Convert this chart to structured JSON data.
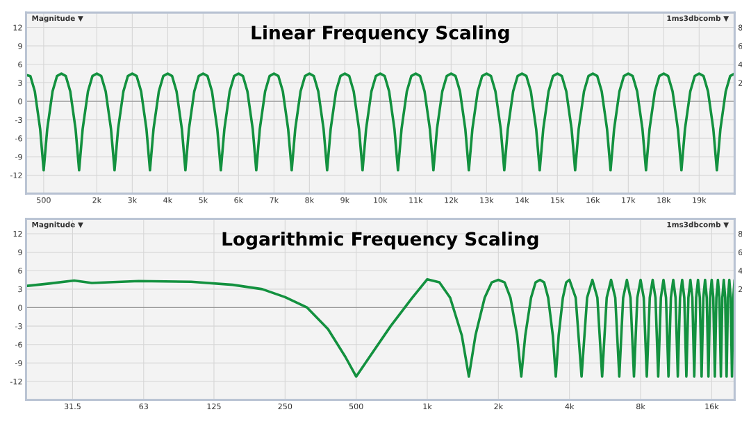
{
  "chart_data": [
    {
      "type": "line",
      "title": "Linear Frequency Scaling",
      "annotations": [
        "Magnitude ▼",
        "1ms3dbcomb ▼"
      ],
      "x": [
        0,
        125,
        250,
        400,
        500,
        600,
        750,
        875,
        1000,
        1125,
        1250,
        1400,
        1500,
        1600,
        1750,
        1875,
        2000,
        2125,
        2250,
        2400,
        2500,
        2600,
        2750,
        2875,
        3000,
        3125,
        3250,
        3400,
        3500,
        3600,
        3750,
        3875,
        4000,
        4125,
        4250,
        4400,
        4500,
        4600,
        4750,
        4875,
        5000,
        5125,
        5250,
        5400,
        5500,
        5600,
        5750,
        5875,
        6000,
        6125,
        6250,
        6400,
        6500,
        6600,
        6750,
        6875,
        7000,
        7125,
        7250,
        7400,
        7500,
        7600,
        7750,
        7875,
        8000,
        8125,
        8250,
        8400,
        8500,
        8600,
        8750,
        8875,
        9000,
        9125,
        9250,
        9400,
        9500,
        9600,
        9750,
        9875,
        10000,
        10125,
        10250,
        10400,
        10500,
        10600,
        10750,
        10875,
        11000,
        11125,
        11250,
        11400,
        11500,
        11600,
        11750,
        11875,
        12000,
        12125,
        12250,
        12400,
        12500,
        12600,
        12750,
        12875,
        13000,
        13125,
        13250,
        13400,
        13500,
        13600,
        13750,
        13875,
        14000,
        14125,
        14250,
        14400,
        14500,
        14600,
        14750,
        14875,
        15000,
        15125,
        15250,
        15400,
        15500,
        15600,
        15750,
        15875,
        16000,
        16125,
        16250,
        16400,
        16500,
        16600,
        16750,
        16875,
        17000,
        17125,
        17250,
        17400,
        17500,
        17600,
        17750,
        17875,
        18000,
        18125,
        18250,
        18400,
        18500,
        18600,
        18750,
        18875,
        19000,
        19125,
        19250,
        19400,
        19500,
        19600,
        19750,
        19875,
        20000
      ],
      "series": [
        {
          "color": "#13913f",
          "values": [
            4.3,
            4.1,
            1.6,
            -4.5,
            -11.2,
            -4.5,
            1.6,
            4.1,
            4.5,
            4.1,
            1.6,
            -4.5,
            -11.2,
            -4.5,
            1.6,
            4.1,
            4.5,
            4.1,
            1.6,
            -4.5,
            -11.2,
            -4.5,
            1.6,
            4.1,
            4.5,
            4.1,
            1.6,
            -4.5,
            -11.2,
            -4.5,
            1.6,
            4.1,
            4.5,
            4.1,
            1.6,
            -4.5,
            -11.2,
            -4.5,
            1.6,
            4.1,
            4.5,
            4.1,
            1.6,
            -4.5,
            -11.2,
            -4.5,
            1.6,
            4.1,
            4.5,
            4.1,
            1.6,
            -4.5,
            -11.2,
            -4.5,
            1.6,
            4.1,
            4.5,
            4.1,
            1.6,
            -4.5,
            -11.2,
            -4.5,
            1.6,
            4.1,
            4.5,
            4.1,
            1.6,
            -4.5,
            -11.2,
            -4.5,
            1.6,
            4.1,
            4.5,
            4.1,
            1.6,
            -4.5,
            -11.2,
            -4.5,
            1.6,
            4.1,
            4.5,
            4.1,
            1.6,
            -4.5,
            -11.2,
            -4.5,
            1.6,
            4.1,
            4.5,
            4.1,
            1.6,
            -4.5,
            -11.2,
            -4.5,
            1.6,
            4.1,
            4.5,
            4.1,
            1.6,
            -4.5,
            -11.2,
            -4.5,
            1.6,
            4.1,
            4.5,
            4.1,
            1.6,
            -4.5,
            -11.2,
            -4.5,
            1.6,
            4.1,
            4.5,
            4.1,
            1.6,
            -4.5,
            -11.2,
            -4.5,
            1.6,
            4.1,
            4.5,
            4.1,
            1.6,
            -4.5,
            -11.2,
            -4.5,
            1.6,
            4.1,
            4.5,
            4.1,
            1.6,
            -4.5,
            -11.2,
            -4.5,
            1.6,
            4.1,
            4.5,
            4.1,
            1.6,
            -4.5,
            -11.2,
            -4.5,
            1.6,
            4.1,
            4.5,
            4.1,
            1.6,
            -4.5,
            -11.2,
            -4.5,
            1.6,
            4.1,
            4.5,
            4.1,
            1.6,
            -4.5,
            -11.2,
            -4.5,
            1.6,
            4.1,
            4.5
          ]
        }
      ],
      "xlim": [
        0,
        20000
      ],
      "ylim": [
        -15,
        14.4
      ],
      "xticks": [
        500,
        {
          "value": 2000,
          "label": "2k"
        },
        {
          "value": 3000,
          "label": "3k"
        },
        {
          "value": 4000,
          "label": "4k"
        },
        {
          "value": 5000,
          "label": "5k"
        },
        {
          "value": 6000,
          "label": "6k"
        },
        {
          "value": 7000,
          "label": "7k"
        },
        {
          "value": 8000,
          "label": "8k"
        },
        {
          "value": 9000,
          "label": "9k"
        },
        {
          "value": 10000,
          "label": "10k"
        },
        {
          "value": 11000,
          "label": "11k"
        },
        {
          "value": 12000,
          "label": "12k"
        },
        {
          "value": 13000,
          "label": "13k"
        },
        {
          "value": 14000,
          "label": "14k"
        },
        {
          "value": 15000,
          "label": "15k"
        },
        {
          "value": 16000,
          "label": "16k"
        },
        {
          "value": 17000,
          "label": "17k"
        },
        {
          "value": 18000,
          "label": "18k"
        },
        {
          "value": 19000,
          "label": "19k"
        }
      ],
      "yticks": [
        -12,
        -9,
        -6,
        -3,
        0,
        3,
        6,
        9,
        12
      ],
      "y2lim": [
        -10,
        9.6
      ],
      "y2ticks": [
        2,
        4,
        6,
        8
      ],
      "grid": true
    },
    {
      "type": "line",
      "title": "Logarithmic Frequency Scaling",
      "annotations": [
        "Magnitude ▼",
        "1ms3dbcomb ▼"
      ],
      "log": "x",
      "x": [
        20,
        25,
        32,
        38,
        60,
        100,
        150,
        200,
        250,
        310,
        380,
        450,
        500,
        570,
        700,
        860,
        1000,
        1125,
        1250,
        1400,
        1500,
        1600,
        1750,
        1875,
        2000,
        2125,
        2250,
        2400,
        2500,
        2600,
        2750,
        2875,
        3000,
        3125,
        3250,
        3400,
        3500,
        3600,
        3750,
        3875,
        4000,
        4250,
        4500,
        4750,
        5000,
        5250,
        5500,
        5750,
        6000,
        6250,
        6500,
        6750,
        7000,
        7250,
        7500,
        7750,
        8000,
        8250,
        8500,
        8750,
        9000,
        9250,
        9500,
        9750,
        10000,
        10250,
        10500,
        10750,
        11000,
        11250,
        11500,
        11750,
        12000,
        12250,
        12500,
        12750,
        13000,
        13250,
        13500,
        13750,
        14000,
        14250,
        14500,
        14750,
        15000,
        15250,
        15500,
        15750,
        16000,
        16250,
        16500,
        16750,
        17000,
        17250,
        17500,
        17750,
        18000,
        18250,
        18500,
        18750,
        19000,
        19250,
        19500,
        19750,
        20000
      ],
      "series": [
        {
          "color": "#13913f",
          "values": [
            3.5,
            3.9,
            4.4,
            4.0,
            4.3,
            4.2,
            3.7,
            3.0,
            1.7,
            0,
            -3.5,
            -8,
            -11.2,
            -8,
            -3,
            1.5,
            4.6,
            4.1,
            1.6,
            -4.5,
            -11.2,
            -4.5,
            1.6,
            4.1,
            4.5,
            4.1,
            1.6,
            -4.5,
            -11.2,
            -4.5,
            1.6,
            4.1,
            4.5,
            4.1,
            1.6,
            -4.5,
            -11.2,
            -4.5,
            1.6,
            4.1,
            4.5,
            1.6,
            -11.2,
            1.6,
            4.5,
            1.6,
            -11.2,
            1.6,
            4.5,
            1.6,
            -11.2,
            1.6,
            4.5,
            1.6,
            -11.2,
            1.6,
            4.5,
            1.6,
            -11.2,
            1.6,
            4.5,
            1.6,
            -11.2,
            1.6,
            4.5,
            1.6,
            -11.2,
            1.6,
            4.5,
            1.6,
            -11.2,
            1.6,
            4.5,
            1.6,
            -11.2,
            1.6,
            4.5,
            1.6,
            -11.2,
            1.6,
            4.5,
            1.6,
            -11.2,
            1.6,
            4.5,
            1.6,
            -11.2,
            1.6,
            4.5,
            1.6,
            -11.2,
            1.6,
            4.5,
            1.6,
            -11.2,
            1.6,
            4.5,
            1.6,
            -11.2,
            1.6,
            4.5,
            1.6,
            -11.2,
            1.6,
            4.5
          ]
        }
      ],
      "xlim": [
        20,
        20000
      ],
      "ylim": [
        -15,
        14.4
      ],
      "xticks": [
        31.5,
        63,
        125,
        250,
        500,
        {
          "value": 1000,
          "label": "1k"
        },
        {
          "value": 2000,
          "label": "2k"
        },
        {
          "value": 4000,
          "label": "4k"
        },
        {
          "value": 8000,
          "label": "8k"
        },
        {
          "value": 16000,
          "label": "16k"
        }
      ],
      "yticks": [
        -12,
        -9,
        -6,
        -3,
        0,
        3,
        6,
        9,
        12
      ],
      "y2lim": [
        -10,
        9.6
      ],
      "y2ticks": [
        2,
        4,
        6,
        8
      ],
      "grid": true
    }
  ]
}
